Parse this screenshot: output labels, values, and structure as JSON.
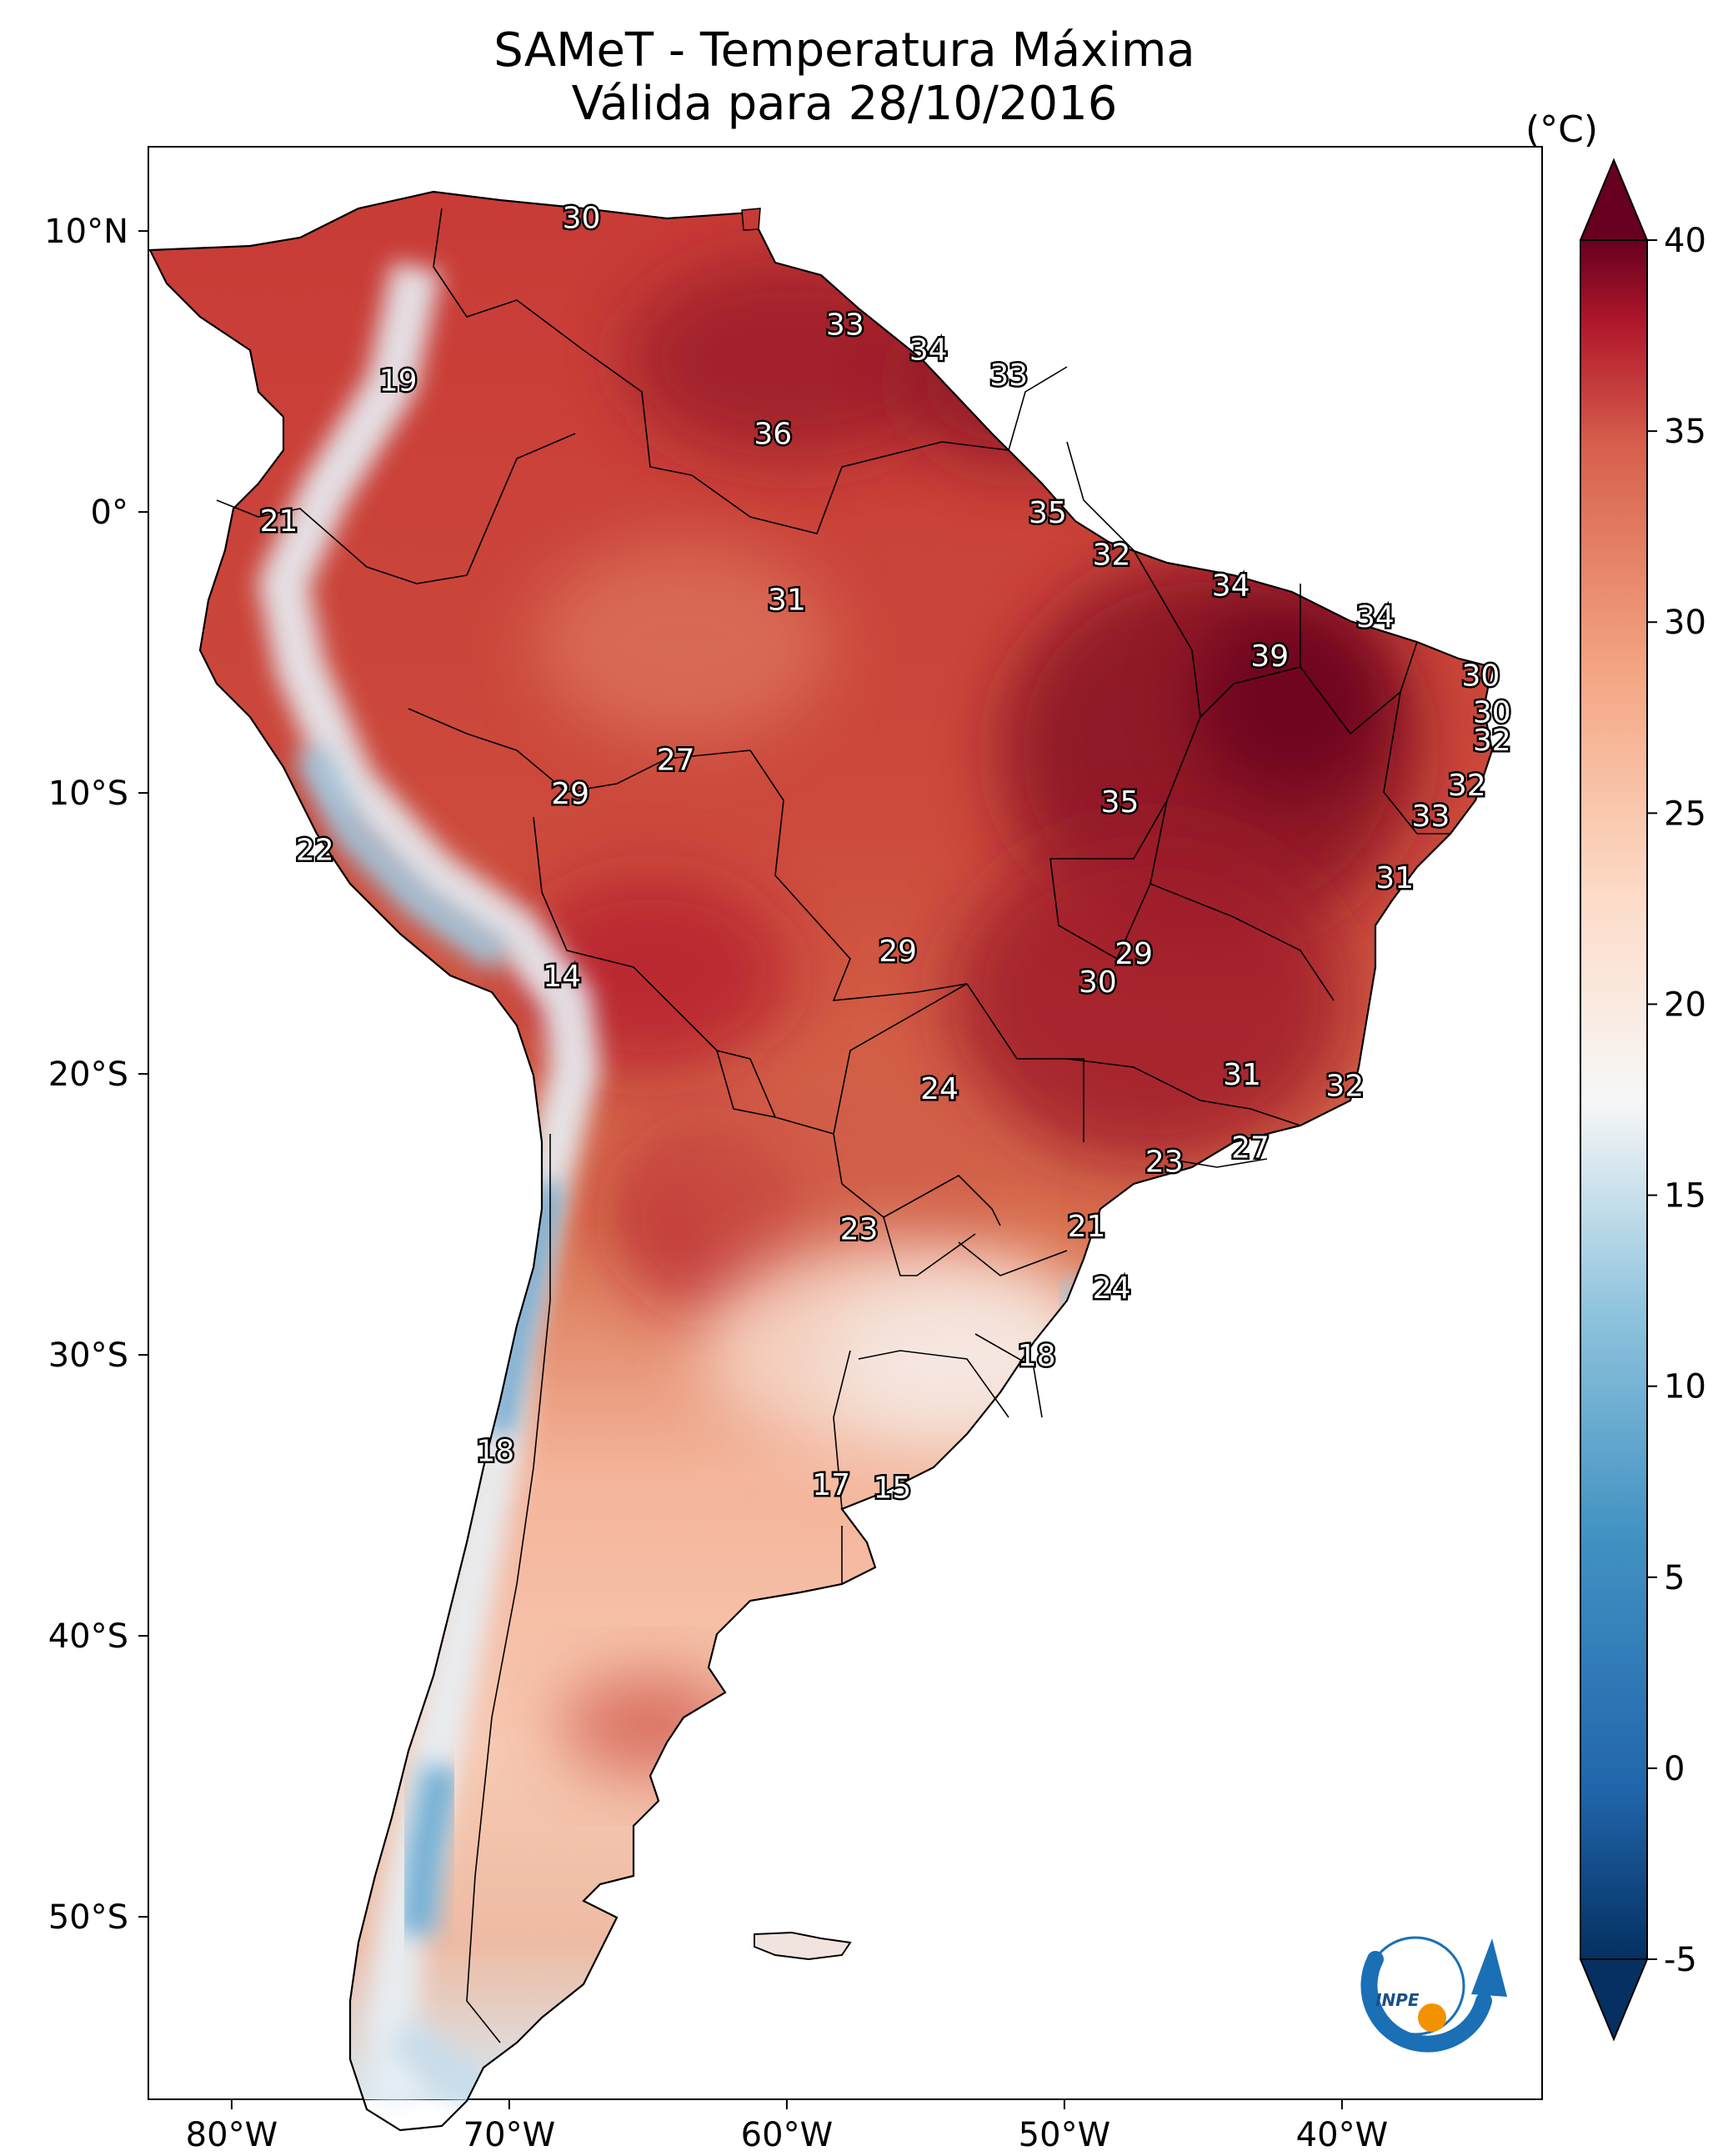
{
  "title": {
    "line1": "SAMeT - Temperatura Máxima",
    "line2": "Válida para 28/10/2016"
  },
  "colorbar": {
    "unit": "(°C)",
    "ticks": [
      "40",
      "35",
      "30",
      "25",
      "20",
      "15",
      "10",
      "5",
      "0",
      "-5"
    ],
    "range": [
      -5,
      40
    ]
  },
  "axes": {
    "lon_ticks": [
      "80°W",
      "70°W",
      "60°W",
      "50°W",
      "40°W"
    ],
    "lat_ticks": [
      "10°N",
      "0°",
      "10°S",
      "20°S",
      "30°S",
      "40°S",
      "50°S"
    ]
  },
  "logo": {
    "text": "INPE"
  },
  "colors": {
    "hot": "#b2182b",
    "warm": "#e58267",
    "neutral": "#f7f7f7",
    "cool": "#92c5de",
    "cold": "#2166ac"
  },
  "labels": [
    {
      "text": "30",
      "lon": -67.4,
      "lat": 10.5
    },
    {
      "text": "19",
      "lon": -74.0,
      "lat": 4.7
    },
    {
      "text": "33",
      "lon": -57.9,
      "lat": 6.7
    },
    {
      "text": "34",
      "lon": -54.9,
      "lat": 5.8
    },
    {
      "text": "33",
      "lon": -52.0,
      "lat": 4.9
    },
    {
      "text": "36",
      "lon": -60.5,
      "lat": 2.8
    },
    {
      "text": "21",
      "lon": -78.3,
      "lat": -0.3
    },
    {
      "text": "35",
      "lon": -50.6,
      "lat": 0.0
    },
    {
      "text": "32",
      "lon": -48.3,
      "lat": -1.5
    },
    {
      "text": "34",
      "lon": -44.0,
      "lat": -2.6
    },
    {
      "text": "31",
      "lon": -60.0,
      "lat": -3.1
    },
    {
      "text": "34",
      "lon": -38.8,
      "lat": -3.7
    },
    {
      "text": "39",
      "lon": -42.6,
      "lat": -5.1
    },
    {
      "text": "30",
      "lon": -35.0,
      "lat": -5.8
    },
    {
      "text": "30",
      "lon": -34.6,
      "lat": -7.1
    },
    {
      "text": "32",
      "lon": -34.6,
      "lat": -8.1
    },
    {
      "text": "27",
      "lon": -64.0,
      "lat": -8.8
    },
    {
      "text": "29",
      "lon": -67.8,
      "lat": -10.0
    },
    {
      "text": "35",
      "lon": -48.0,
      "lat": -10.3
    },
    {
      "text": "32",
      "lon": -35.5,
      "lat": -9.7
    },
    {
      "text": "33",
      "lon": -36.8,
      "lat": -10.8
    },
    {
      "text": "22",
      "lon": -77.0,
      "lat": -12.0
    },
    {
      "text": "31",
      "lon": -38.1,
      "lat": -13.0
    },
    {
      "text": "14",
      "lon": -68.1,
      "lat": -16.5
    },
    {
      "text": "29",
      "lon": -56.0,
      "lat": -15.6
    },
    {
      "text": "29",
      "lon": -47.5,
      "lat": -15.7
    },
    {
      "text": "30",
      "lon": -48.8,
      "lat": -16.7
    },
    {
      "text": "31",
      "lon": -43.6,
      "lat": -20.0
    },
    {
      "text": "32",
      "lon": -39.9,
      "lat": -20.4
    },
    {
      "text": "24",
      "lon": -54.5,
      "lat": -20.5
    },
    {
      "text": "27",
      "lon": -43.3,
      "lat": -22.6
    },
    {
      "text": "23",
      "lon": -46.4,
      "lat": -23.1
    },
    {
      "text": "23",
      "lon": -57.4,
      "lat": -25.5
    },
    {
      "text": "21",
      "lon": -49.2,
      "lat": -25.4
    },
    {
      "text": "24",
      "lon": -48.3,
      "lat": -27.6
    },
    {
      "text": "18",
      "lon": -51.0,
      "lat": -30.0
    },
    {
      "text": "18",
      "lon": -70.5,
      "lat": -33.4
    },
    {
      "text": "17",
      "lon": -58.4,
      "lat": -34.6
    },
    {
      "text": "15",
      "lon": -56.2,
      "lat": -34.7
    }
  ]
}
